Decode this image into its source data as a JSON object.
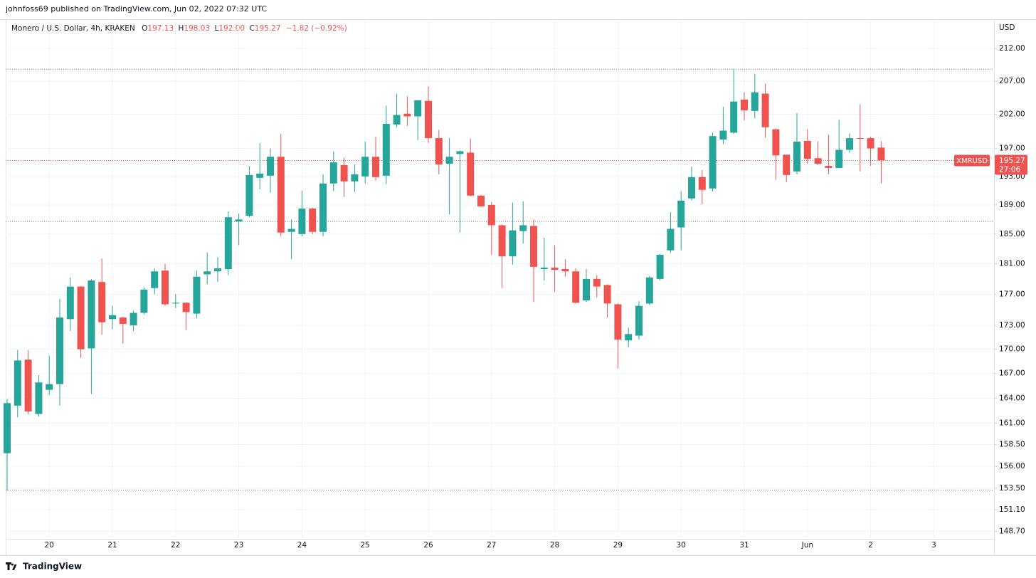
{
  "header": {
    "byline": "johnfoss69 published on TradingView.com, Jun 02, 2022 07:32 UTC"
  },
  "footer": {
    "brand": "TradingView"
  },
  "chart_data": {
    "type": "candlestick",
    "title": "Monero / U.S. Dollar, 4h, KRAKEN",
    "ohlc_legend": [
      {
        "key": "O",
        "value": "197.13"
      },
      {
        "key": "H",
        "value": "198.03"
      },
      {
        "key": "L",
        "value": "192.00"
      },
      {
        "key": "C",
        "value": "195.27"
      }
    ],
    "change": "−1.82 (−0.92%)",
    "y_axis_label": "USD",
    "categories": [
      null,
      null,
      null,
      null,
      "20",
      null,
      null,
      null,
      null,
      null,
      "21",
      null,
      null,
      null,
      null,
      null,
      "22",
      null,
      null,
      null,
      null,
      null,
      "23",
      null,
      null,
      null,
      null,
      null,
      "24",
      null,
      null,
      null,
      null,
      null,
      "25",
      null,
      null,
      null,
      null,
      null,
      "26",
      null,
      null,
      null,
      null,
      null,
      "27",
      null,
      null,
      null,
      null,
      null,
      "28",
      null,
      null,
      null,
      null,
      null,
      "29",
      null,
      null,
      null,
      null,
      null,
      "30",
      null,
      null,
      null,
      null,
      null,
      "31",
      null,
      null,
      null,
      null,
      null,
      "Jun",
      null,
      null,
      null,
      null,
      null,
      "2",
      null,
      null,
      null,
      null,
      null,
      "3",
      null,
      null,
      null,
      null,
      null
    ],
    "open": [
      157.5,
      163.1,
      168.7,
      162.1,
      165.0,
      165.7,
      173.8,
      178.0,
      170.1,
      178.6,
      173.8,
      174.0,
      173.0,
      174.6,
      177.8,
      180.1,
      175.8,
      175.9,
      174.5,
      179.6,
      180.0,
      180.3,
      186.7,
      187.5,
      192.8,
      193.1,
      195.8,
      185.3,
      185.0,
      188.5,
      185.3,
      192.0,
      194.6,
      192.3,
      193.0,
      195.8,
      193.1,
      200.5,
      202.1,
      201.7,
      204.0,
      198.5,
      194.8,
      196.2,
      196.4,
      190.3,
      189.0,
      186.2,
      182.0,
      185.4,
      186.1,
      180.3,
      180.5,
      180.3,
      180.0,
      176.2,
      179.0,
      178.2,
      175.7,
      171.1,
      171.7,
      175.8,
      179.0,
      182.8,
      185.9,
      189.9,
      192.9,
      191.3,
      198.3,
      199.3,
      204.2,
      202.5,
      205.1,
      199.8,
      196.1,
      193.7,
      198.1,
      195.6,
      194.5,
      194.2,
      196.8,
      198.5,
      198.5,
      197.13,
      null,
      null,
      null,
      null,
      null,
      null,
      null,
      null,
      null,
      null
    ],
    "high": [
      163.9,
      169.9,
      169.9,
      166.8,
      169.2,
      176.4,
      179.2,
      178.1,
      179.0,
      181.7,
      175.5,
      174.1,
      174.9,
      177.9,
      180.4,
      181.0,
      177.0,
      176.0,
      180.1,
      182.5,
      181.9,
      188.1,
      187.8,
      194.5,
      197.8,
      197.0,
      199.1,
      187.0,
      191.0,
      188.6,
      193.3,
      196.6,
      195.7,
      194.7,
      198.0,
      198.7,
      203.3,
      205.1,
      204.7,
      204.1,
      206.2,
      199.7,
      198.5,
      196.7,
      198.4,
      190.4,
      189.4,
      186.3,
      189.3,
      189.5,
      187.0,
      184.5,
      183.5,
      181.6,
      180.4,
      180.3,
      179.5,
      178.3,
      175.8,
      172.7,
      176.1,
      179.4,
      182.3,
      188.0,
      190.9,
      194.4,
      193.9,
      199.3,
      203.1,
      208.9,
      205.3,
      208.1,
      206.6,
      199.9,
      196.1,
      202.2,
      199.8,
      198.0,
      199.0,
      201.2,
      199.2,
      203.5,
      198.7,
      198.03,
      null,
      null,
      null,
      null,
      null,
      null,
      null,
      null,
      null,
      null
    ],
    "low": [
      153.2,
      161.7,
      162.1,
      161.8,
      164.4,
      163.1,
      172.3,
      168.9,
      164.5,
      171.8,
      172.5,
      170.7,
      172.3,
      174.4,
      177.0,
      175.5,
      175.2,
      172.4,
      173.9,
      178.3,
      178.6,
      179.5,
      183.5,
      187.3,
      191.2,
      190.7,
      184.7,
      181.6,
      184.7,
      185.0,
      184.7,
      190.9,
      190.1,
      190.8,
      192.0,
      192.4,
      191.9,
      200.1,
      200.3,
      198.2,
      197.8,
      193.3,
      187.7,
      185.2,
      190.2,
      188.7,
      182.2,
      177.8,
      180.9,
      183.7,
      176.0,
      178.8,
      177.3,
      179.3,
      175.8,
      176.0,
      176.6,
      174.0,
      167.6,
      170.2,
      171.2,
      175.6,
      178.8,
      182.5,
      182.8,
      189.6,
      189.1,
      190.9,
      197.6,
      199.1,
      201.1,
      201.4,
      198.6,
      192.5,
      192.2,
      193.3,
      194.8,
      194.6,
      193.3,
      194.2,
      196.4,
      193.7,
      194.5,
      192.0,
      null,
      null,
      null,
      null,
      null,
      null,
      null,
      null,
      null,
      null
    ],
    "close": [
      163.4,
      168.6,
      162.4,
      165.9,
      165.7,
      174.0,
      178.0,
      170.0,
      178.8,
      173.4,
      174.3,
      173.2,
      174.6,
      177.6,
      180.0,
      175.7,
      175.9,
      174.7,
      179.3,
      180.0,
      180.4,
      187.3,
      187.0,
      193.2,
      193.4,
      195.8,
      185.2,
      185.7,
      188.5,
      185.3,
      192.0,
      195.0,
      192.3,
      193.3,
      195.8,
      192.9,
      200.6,
      201.9,
      201.7,
      204.1,
      198.5,
      194.7,
      195.8,
      196.6,
      190.3,
      188.8,
      186.2,
      182.0,
      185.5,
      186.2,
      180.6,
      180.5,
      180.2,
      180.0,
      175.9,
      179.0,
      178.0,
      175.8,
      171.2,
      171.9,
      175.5,
      179.2,
      182.2,
      185.7,
      189.6,
      192.9,
      191.1,
      198.8,
      199.6,
      203.9,
      202.6,
      205.3,
      200.1,
      196.0,
      193.2,
      198.0,
      195.5,
      194.8,
      194.2,
      196.8,
      198.5,
      198.4,
      197.0,
      195.27,
      null,
      null,
      null,
      null,
      null,
      null,
      null,
      null,
      null,
      null
    ],
    "up_color": "#26a69a",
    "down_color": "#ef5350",
    "ylim": [
      147.9,
      216.5
    ],
    "log_scale": true,
    "yticks": [
      {
        "value": 148.7,
        "label": "148.70"
      },
      {
        "value": 151.1,
        "label": "151.10"
      },
      {
        "value": 153.5,
        "label": "153.50"
      },
      {
        "value": 156,
        "label": "156.00"
      },
      {
        "value": 158.5,
        "label": "158.50"
      },
      {
        "value": 161,
        "label": "161.00"
      },
      {
        "value": 164,
        "label": "164.00"
      },
      {
        "value": 167,
        "label": "167.00"
      },
      {
        "value": 170,
        "label": "170.00"
      },
      {
        "value": 173,
        "label": "173.00"
      },
      {
        "value": 177,
        "label": "177.00"
      },
      {
        "value": 181,
        "label": "181.00"
      },
      {
        "value": 185,
        "label": "185.00"
      },
      {
        "value": 189,
        "label": "189.00"
      },
      {
        "value": 193,
        "label": "193.00"
      },
      {
        "value": 197,
        "label": "197.00"
      },
      {
        "value": 202,
        "label": "202.00"
      },
      {
        "value": 207,
        "label": "207.00"
      },
      {
        "value": 212,
        "label": "212.00"
      }
    ],
    "grid": true,
    "levels": [
      208.8,
      186.7,
      153.3
    ],
    "last_price": {
      "symbol": "XMRUSD",
      "value": 195.27,
      "countdown": "27:06"
    }
  }
}
